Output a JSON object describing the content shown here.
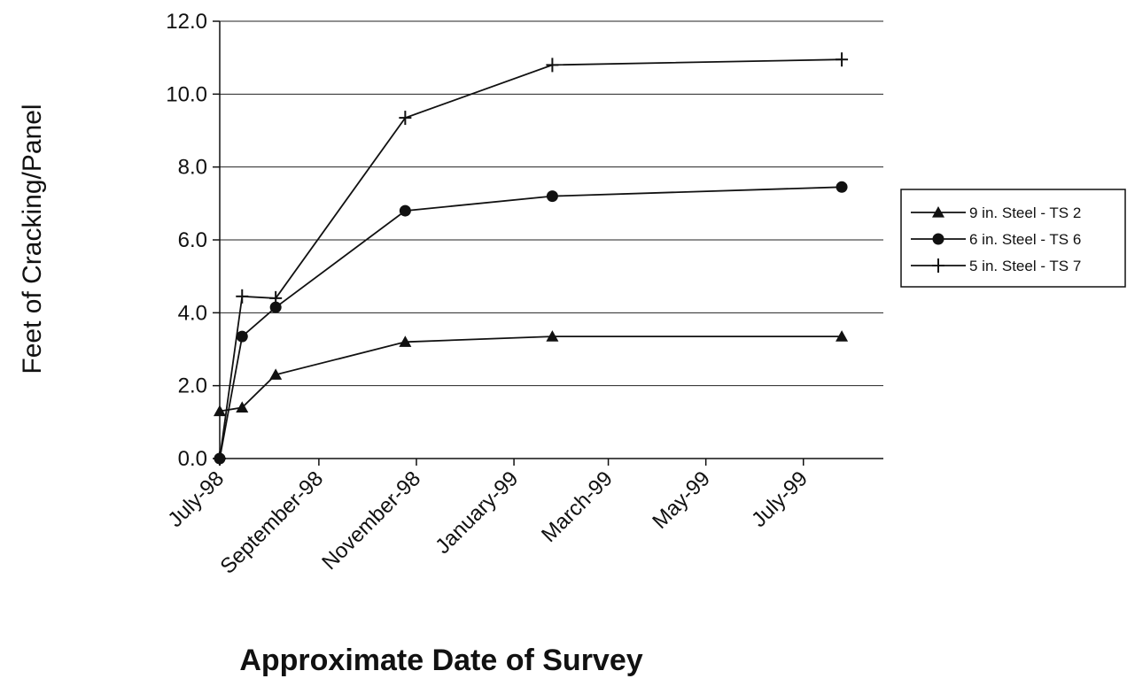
{
  "chart_data": {
    "type": "line",
    "title": "",
    "xlabel": "Approximate Date of Survey",
    "ylabel": "Feet of Cracking/Panel",
    "ylim": [
      0,
      12
    ],
    "y_ticks": [
      "0.0",
      "2.0",
      "4.0",
      "6.0",
      "8.0",
      "10.0",
      "12.0"
    ],
    "x_axis": {
      "scale": "date",
      "range": [
        "1998-07-01",
        "1999-08-20"
      ],
      "ticks": [
        {
          "date": "1998-07-01",
          "label": "July-98"
        },
        {
          "date": "1998-09-01",
          "label": "September-98"
        },
        {
          "date": "1998-11-01",
          "label": "November-98"
        },
        {
          "date": "1999-01-01",
          "label": "January-99"
        },
        {
          "date": "1999-03-01",
          "label": "March-99"
        },
        {
          "date": "1999-05-01",
          "label": "May-99"
        },
        {
          "date": "1999-07-01",
          "label": "July-99"
        }
      ]
    },
    "grid": "horizontal",
    "legend_position": "right",
    "series": [
      {
        "name": "9 in. Steel - TS 2",
        "marker": "triangle",
        "points": [
          {
            "x": "1998-07-01",
            "y": 1.3
          },
          {
            "x": "1998-07-15",
            "y": 1.4
          },
          {
            "x": "1998-08-05",
            "y": 2.3
          },
          {
            "x": "1998-10-25",
            "y": 3.2
          },
          {
            "x": "1999-01-25",
            "y": 3.35
          },
          {
            "x": "1999-07-25",
            "y": 3.35
          }
        ]
      },
      {
        "name": "6 in. Steel - TS 6",
        "marker": "circle",
        "points": [
          {
            "x": "1998-07-01",
            "y": 0.0
          },
          {
            "x": "1998-07-15",
            "y": 3.35
          },
          {
            "x": "1998-08-05",
            "y": 4.15
          },
          {
            "x": "1998-10-25",
            "y": 6.8
          },
          {
            "x": "1999-01-25",
            "y": 7.2
          },
          {
            "x": "1999-07-25",
            "y": 7.45
          }
        ]
      },
      {
        "name": "5 in. Steel - TS 7",
        "marker": "plus",
        "points": [
          {
            "x": "1998-07-01",
            "y": 0.0
          },
          {
            "x": "1998-07-15",
            "y": 4.45
          },
          {
            "x": "1998-08-05",
            "y": 4.4
          },
          {
            "x": "1998-10-25",
            "y": 9.35
          },
          {
            "x": "1999-01-25",
            "y": 10.8
          },
          {
            "x": "1999-07-25",
            "y": 10.95
          }
        ]
      }
    ]
  }
}
